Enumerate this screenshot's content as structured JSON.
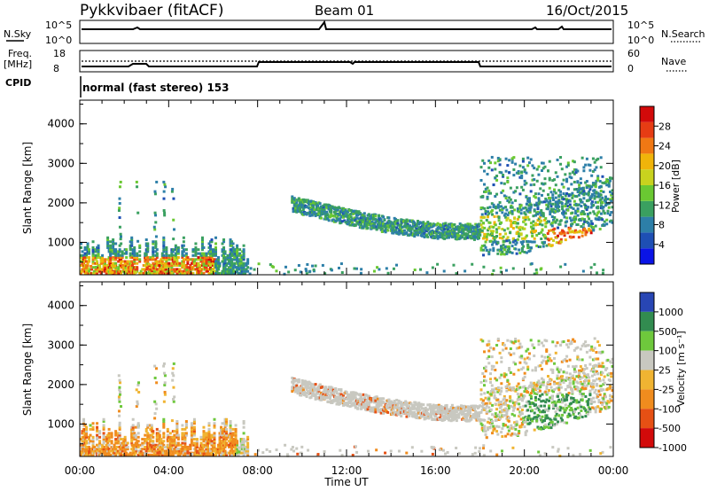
{
  "header": {
    "station": "Pykkvibaer (fitACF)",
    "beam": "Beam 01",
    "date": "16/Oct/2015"
  },
  "nsky_panel": {
    "label": "N.Sky",
    "right_label": "N.Search",
    "left_ticks": [
      "10^5",
      "10^0"
    ],
    "right_ticks": [
      "10^5",
      "10^0"
    ]
  },
  "freq_panel": {
    "label_line1": "Freq.",
    "label_line2": "[MHz]",
    "right_label": "Nave",
    "left_ticks": [
      "18",
      "8"
    ],
    "right_ticks": [
      "60",
      "0"
    ]
  },
  "cpid": {
    "label": "CPID",
    "text": "normal (fast stereo) 153"
  },
  "x_axis": {
    "label": "Time UT",
    "ticks": [
      "00:00",
      "04:00",
      "08:00",
      "12:00",
      "16:00",
      "20:00",
      "00:00"
    ]
  },
  "chart_data": [
    {
      "type": "heatmap",
      "ylabel": "Slant Range [km]",
      "yticks": [
        "1000",
        "2000",
        "3000",
        "4000"
      ],
      "ylim": [
        180,
        4600
      ],
      "xlim_hours": [
        0,
        24
      ],
      "colorbar_label": "Power [dB]",
      "colorbar_ticks": [
        "4",
        "8",
        "12",
        "16",
        "20",
        "24",
        "28"
      ],
      "colorbar_range": [
        0,
        32
      ],
      "colors": [
        "#0a14e6",
        "#1e4fb4",
        "#2d7fa8",
        "#3aa060",
        "#6ac832",
        "#c8d21e",
        "#f0b40a",
        "#f07814",
        "#e63c14",
        "#d20a0a"
      ]
    },
    {
      "type": "heatmap",
      "ylabel": "Slant Range [km]",
      "yticks": [
        "1000",
        "2000",
        "3000",
        "4000"
      ],
      "ylim": [
        180,
        4600
      ],
      "xlim_hours": [
        0,
        24
      ],
      "colorbar_label": "Velocity [m s⁻¹]",
      "colorbar_ticks": [
        "1000",
        "500",
        "100",
        "25",
        "-25",
        "-100",
        "-500",
        "-1000"
      ],
      "colors": [
        "#2846b4",
        "#328c50",
        "#6ec83c",
        "#c8c8c0",
        "#f0b432",
        "#f08c1e",
        "#e65014",
        "#d20a0a"
      ]
    }
  ]
}
